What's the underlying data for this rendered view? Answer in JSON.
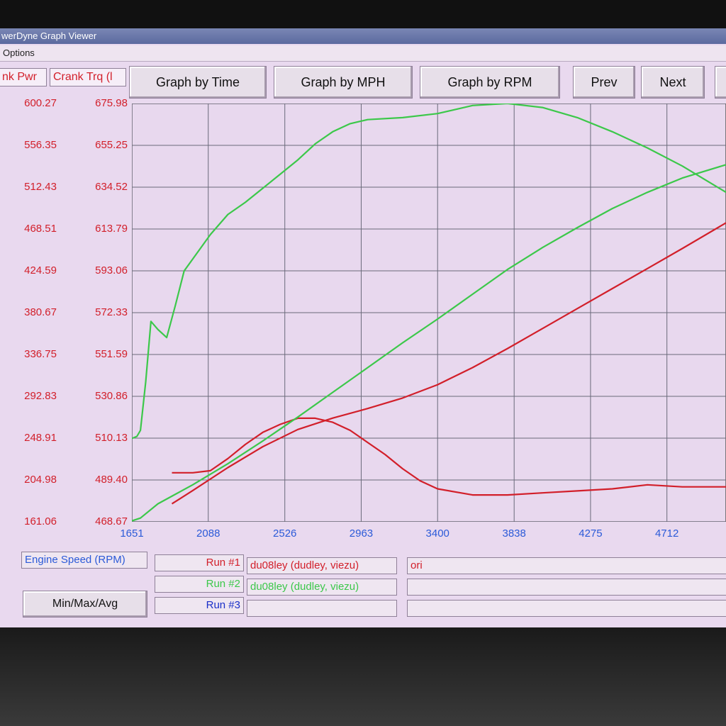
{
  "window": {
    "title": "werDyne Graph Viewer",
    "menu_options": "Options"
  },
  "headers": {
    "crank_pwr": "nk Pwr",
    "crank_trq": "Crank Trq (l"
  },
  "toolbar": {
    "graph_by_time": "Graph by Time",
    "graph_by_mph": "Graph by MPH",
    "graph_by_rpm": "Graph by RPM",
    "prev": "Prev",
    "next": "Next"
  },
  "footer": {
    "axis_label": "Engine Speed (RPM)",
    "min_max_avg": "Min/Max/Avg",
    "runs": [
      {
        "label": "Run #1",
        "name": "du08ley (dudley, viezu)",
        "note": "ori",
        "color": "#d21f2a"
      },
      {
        "label": "Run #2",
        "name": "du08ley (dudley, viezu)",
        "note": "",
        "color": "#3cc84a"
      },
      {
        "label": "Run #3",
        "name": "",
        "note": "",
        "color": "#1a2fc8"
      }
    ]
  },
  "colors": {
    "run1": "#d21f2a",
    "run2": "#3cc84a",
    "x_ticks": "#2b5ad8",
    "grid": "#6a6a7a"
  },
  "chart_data": {
    "type": "line",
    "x_ticks": [
      "1651",
      "2088",
      "2526",
      "2963",
      "3400",
      "3838",
      "4275",
      "4712"
    ],
    "y_left_ticks": [
      "600.27",
      "556.35",
      "512.43",
      "468.51",
      "424.59",
      "380.67",
      "336.75",
      "292.83",
      "248.91",
      "204.98",
      "161.06"
    ],
    "y_right_ticks": [
      "675.98",
      "655.25",
      "634.52",
      "613.79",
      "593.06",
      "572.33",
      "551.59",
      "530.86",
      "510.13",
      "489.40",
      "468.67"
    ],
    "xlim": [
      1651,
      5050
    ],
    "y_left_lim": [
      161.06,
      600.27
    ],
    "y_right_lim": [
      468.67,
      675.98
    ],
    "grid": true,
    "series": [
      {
        "run": "Run #1",
        "quantity": "Crank Pwr",
        "axis": "left",
        "x": [
          1880,
          2000,
          2200,
          2400,
          2600,
          2800,
          3000,
          3200,
          3400,
          3600,
          3800,
          4000,
          4200,
          4400,
          4600,
          4800,
          5050
        ],
        "y": [
          180,
          194,
          218,
          240,
          258,
          270,
          280,
          291,
          305,
          323,
          343,
          364,
          385,
          406,
          427,
          448,
          475
        ]
      },
      {
        "run": "Run #1",
        "quantity": "Crank Trq",
        "axis": "right",
        "x": [
          1880,
          2000,
          2100,
          2200,
          2300,
          2400,
          2500,
          2600,
          2700,
          2800,
          2900,
          3000,
          3100,
          3200,
          3300,
          3400,
          3600,
          3800,
          4000,
          4200,
          4400,
          4600,
          4800,
          5050
        ],
        "y": [
          493,
          493,
          494,
          500,
          507,
          513,
          517,
          520,
          520,
          518,
          514,
          508,
          502,
          495,
          489,
          485,
          482,
          482,
          483,
          484,
          485,
          487,
          486,
          486
        ]
      },
      {
        "run": "Run #2",
        "quantity": "Crank Pwr",
        "axis": "left",
        "x": [
          1651,
          1700,
          1800,
          1900,
          2000,
          2200,
          2400,
          2600,
          2800,
          3000,
          3200,
          3400,
          3600,
          3800,
          4000,
          4200,
          4400,
          4600,
          4800,
          5050
        ],
        "y": [
          162,
          165,
          180,
          190,
          200,
          222,
          246,
          271,
          297,
          323,
          349,
          374,
          400,
          426,
          449,
          470,
          490,
          507,
          522,
          536
        ]
      },
      {
        "run": "Run #2",
        "quantity": "Crank Trq",
        "axis": "right",
        "x": [
          1651,
          1680,
          1700,
          1730,
          1760,
          1800,
          1850,
          1900,
          1950,
          2000,
          2100,
          2200,
          2300,
          2400,
          2500,
          2600,
          2700,
          2800,
          2900,
          3000,
          3200,
          3400,
          3600,
          3800,
          4000,
          4200,
          4400,
          4600,
          4800,
          5050
        ],
        "y": [
          510,
          511,
          514,
          538,
          568,
          564,
          560,
          576,
          593,
          599,
          611,
          621,
          627,
          634,
          641,
          648,
          656,
          662,
          666,
          668,
          669,
          671,
          675,
          676,
          674,
          669,
          662,
          654,
          645,
          632
        ]
      }
    ]
  }
}
